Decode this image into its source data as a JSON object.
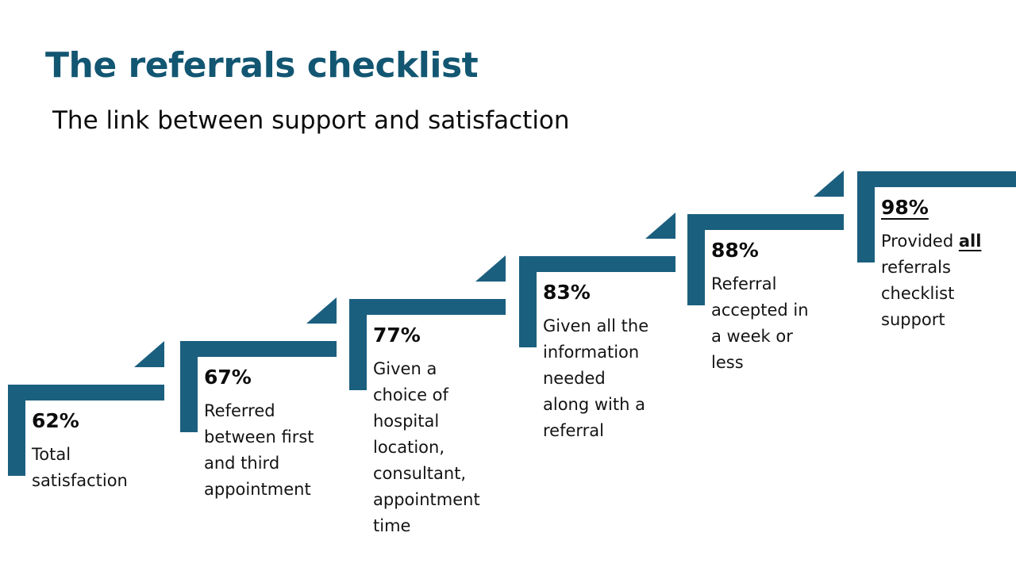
{
  "slide": {
    "title": "The referrals checklist",
    "subtitle": "The link between support and satisfaction"
  },
  "colors": {
    "accent": "#1b5f7f",
    "title_text": "#125672",
    "body_text": "#141414"
  },
  "steps": [
    {
      "percent": "62%",
      "description": "Total\nsatisfaction"
    },
    {
      "percent": "67%",
      "description": "Referred\nbetween first\nand third\nappointment"
    },
    {
      "percent": "77%",
      "description": "Given a\nchoice of\nhospital\nlocation,\nconsultant,\nappointment\ntime"
    },
    {
      "percent": "83%",
      "description": "Given all the\ninformation\nneeded\nalong with a\nreferral"
    },
    {
      "percent": "88%",
      "description": "Referral\naccepted in\na week or\nless"
    },
    {
      "percent": "98%",
      "description_prefix": "Provided ",
      "description_emphasis": "all",
      "description_rest": "\nreferrals\nchecklist\nsupport"
    }
  ]
}
